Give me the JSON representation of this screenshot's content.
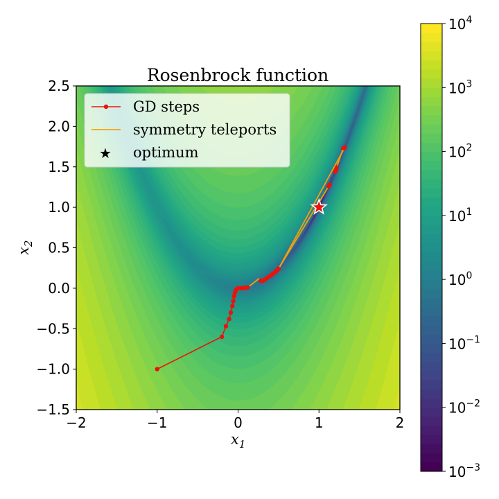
{
  "chart_data": {
    "type": "contour",
    "title": "Rosenbrock function",
    "xlabel": "x",
    "xlabel_sub": "1",
    "ylabel": "x",
    "ylabel_sub": "2",
    "xlim": [
      -2,
      2
    ],
    "ylim": [
      -1.5,
      2.5
    ],
    "x_ticks": [
      -2,
      -1,
      0,
      1,
      2
    ],
    "x_tick_labels": [
      "−2",
      "−1",
      "0",
      "1",
      "2"
    ],
    "y_ticks": [
      2.5,
      2.0,
      1.5,
      1.0,
      0.5,
      0.0,
      -0.5,
      -1.0,
      -1.5
    ],
    "y_tick_labels": [
      "2.5",
      "2.0",
      "1.5",
      "1.0",
      "0.5",
      "0.0",
      "−0.5",
      "−1.0",
      "−1.5"
    ],
    "colormap": "viridis",
    "colorbar": {
      "scale": "log",
      "range": [
        0.001,
        10000
      ],
      "ticks": [
        {
          "value": 10000,
          "base": "10",
          "exp": "4"
        },
        {
          "value": 1000,
          "base": "10",
          "exp": "3"
        },
        {
          "value": 100,
          "base": "10",
          "exp": "2"
        },
        {
          "value": 10,
          "base": "10",
          "exp": "1"
        },
        {
          "value": 1,
          "base": "10",
          "exp": "0"
        },
        {
          "value": 0.1,
          "base": "10",
          "exp": "−1"
        },
        {
          "value": 0.01,
          "base": "10",
          "exp": "−2"
        },
        {
          "value": 0.001,
          "base": "10",
          "exp": "−3"
        }
      ]
    },
    "legend": {
      "placement": "top-left",
      "entries": [
        {
          "label": "GD steps",
          "color": "#e8140c"
        },
        {
          "label": "symmetry teleports",
          "color": "#f5a20a"
        },
        {
          "label": "optimum",
          "color": "#000000"
        }
      ]
    },
    "gd_steps": [
      [
        -1.0,
        -1.0
      ],
      [
        -0.2,
        -0.6
      ],
      [
        -0.15,
        -0.47
      ],
      [
        -0.11,
        -0.38
      ],
      [
        -0.09,
        -0.3
      ],
      [
        -0.07,
        -0.22
      ],
      [
        -0.06,
        -0.16
      ],
      [
        -0.05,
        -0.1
      ],
      [
        -0.04,
        -0.06
      ],
      [
        -0.03,
        -0.03
      ],
      [
        -0.02,
        -0.015
      ],
      [
        -0.01,
        -0.005
      ],
      [
        0.0,
        0.0
      ],
      [
        0.03,
        0.0
      ],
      [
        0.06,
        0.002
      ],
      [
        0.09,
        0.005
      ],
      [
        0.12,
        0.01
      ]
    ],
    "gd_steps_2": [
      [
        0.28,
        0.09
      ],
      [
        0.3,
        0.09
      ],
      [
        0.32,
        0.1
      ],
      [
        0.35,
        0.12
      ],
      [
        0.38,
        0.14
      ],
      [
        0.41,
        0.16
      ],
      [
        0.43,
        0.18
      ],
      [
        0.46,
        0.2
      ],
      [
        0.48,
        0.22
      ],
      [
        0.5,
        0.24
      ]
    ],
    "gd_steps_3": [
      [
        1.32,
        1.74
      ],
      [
        1.3,
        1.73
      ]
    ],
    "gd_steps_4": [
      [
        1.22,
        1.49
      ],
      [
        1.21,
        1.46
      ],
      [
        1.2,
        1.44
      ]
    ],
    "gd_steps_5": [
      [
        1.13,
        1.28
      ],
      [
        1.12,
        1.26
      ]
    ],
    "teleports": [
      [
        0.12,
        0.01
      ],
      [
        0.26,
        0.12
      ],
      [
        0.5,
        0.24
      ],
      [
        1.32,
        1.74
      ],
      [
        1.3,
        1.73
      ],
      [
        1.2,
        1.44
      ],
      [
        1.12,
        1.26
      ],
      [
        0.5,
        0.24
      ]
    ],
    "optimum": [
      1.0,
      1.0
    ],
    "optimum_color": "#e8140c"
  }
}
